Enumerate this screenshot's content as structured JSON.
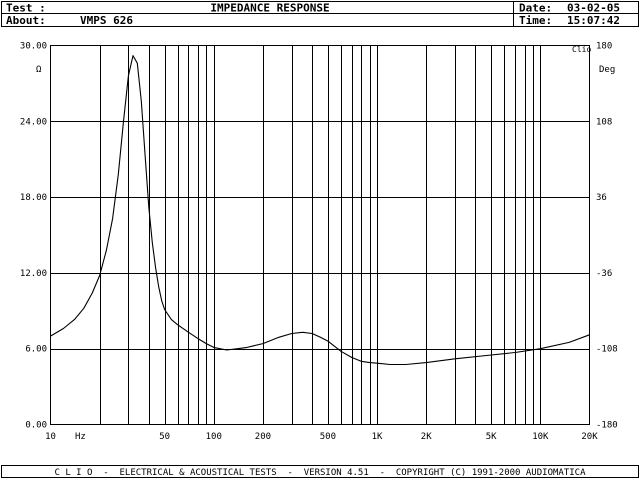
{
  "header": {
    "test_label": "Test :",
    "test_value": "",
    "about_label": "About:",
    "about_value": "VMPS 626",
    "title": "IMPEDANCE RESPONSE",
    "date_label": "Date:",
    "date_value": "03-02-05",
    "time_label": "Time:",
    "time_value": "15:07:42"
  },
  "footer": {
    "text": "C L I O  -  ELECTRICAL & ACOUSTICAL TESTS  -  VERSION 4.51  -  COPYRIGHT (C) 1991-2000 AUDIOMATICA"
  },
  "chart_data": {
    "type": "line",
    "title": "IMPEDANCE RESPONSE",
    "xlabel": "Hz",
    "ylabel": "Ω",
    "y2label": "Deg",
    "watermark": "Clio",
    "x_scale": "log",
    "xlim": [
      10,
      20000
    ],
    "ylim": [
      0,
      30
    ],
    "y2lim": [
      -180,
      180
    ],
    "grid": true,
    "x_ticks": [
      {
        "value": 10,
        "label": "10"
      },
      {
        "value": 50,
        "label": "50"
      },
      {
        "value": 100,
        "label": "100"
      },
      {
        "value": 200,
        "label": "200"
      },
      {
        "value": 500,
        "label": "500"
      },
      {
        "value": 1000,
        "label": "1K"
      },
      {
        "value": 2000,
        "label": "2K"
      },
      {
        "value": 5000,
        "label": "5K"
      },
      {
        "value": 10000,
        "label": "10K"
      },
      {
        "value": 20000,
        "label": "20K"
      }
    ],
    "x_unit_label": "Hz",
    "y_ticks": [
      {
        "value": 0,
        "label": "0.00"
      },
      {
        "value": 6,
        "label": "6.00"
      },
      {
        "value": 12,
        "label": "12.00"
      },
      {
        "value": 18,
        "label": "18.00"
      },
      {
        "value": 24,
        "label": "24.00"
      },
      {
        "value": 30,
        "label": "30.00"
      }
    ],
    "y2_ticks": [
      {
        "value": -180,
        "label": "-180"
      },
      {
        "value": -108,
        "label": "-108"
      },
      {
        "value": -36,
        "label": "-36"
      },
      {
        "value": 36,
        "label": "36"
      },
      {
        "value": 108,
        "label": "108"
      },
      {
        "value": 180,
        "label": "180"
      }
    ],
    "series": [
      {
        "color": "#000000",
        "x": [
          10,
          12,
          14,
          16,
          18,
          20,
          22,
          24,
          26,
          28,
          30,
          32,
          34,
          36,
          38,
          40,
          42,
          44,
          46,
          48,
          50,
          55,
          60,
          70,
          80,
          90,
          100,
          120,
          140,
          160,
          200,
          250,
          300,
          350,
          400,
          450,
          500,
          600,
          700,
          800,
          900,
          1000,
          1200,
          1500,
          2000,
          3000,
          5000,
          7000,
          10000,
          15000,
          20000
        ],
        "y": [
          7.0,
          7.6,
          8.3,
          9.2,
          10.4,
          11.8,
          13.8,
          16.3,
          19.8,
          24.0,
          27.6,
          29.2,
          28.6,
          25.6,
          21.2,
          17.2,
          14.4,
          12.4,
          10.9,
          9.8,
          9.1,
          8.3,
          7.9,
          7.3,
          6.8,
          6.4,
          6.1,
          5.9,
          6.0,
          6.1,
          6.4,
          6.9,
          7.2,
          7.3,
          7.2,
          6.9,
          6.6,
          5.8,
          5.3,
          5.0,
          4.9,
          4.85,
          4.75,
          4.75,
          4.9,
          5.2,
          5.5,
          5.7,
          6.0,
          6.5,
          7.1
        ]
      }
    ]
  }
}
